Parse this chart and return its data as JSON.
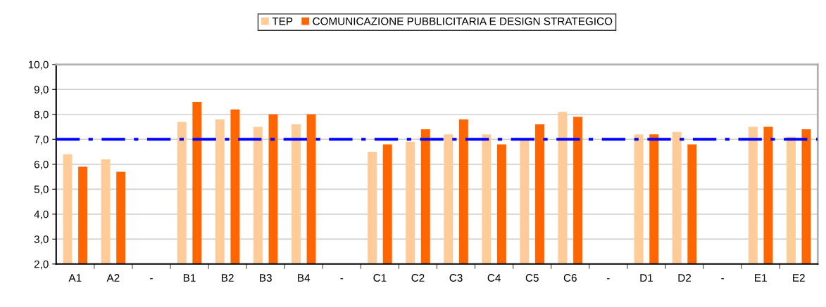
{
  "chart_data": {
    "type": "bar",
    "categories": [
      "A1",
      "A2",
      "-",
      "B1",
      "B2",
      "B3",
      "B4",
      "-",
      "C1",
      "C2",
      "C3",
      "C4",
      "C5",
      "C6",
      "-",
      "D1",
      "D2",
      "-",
      "E1",
      "E2"
    ],
    "series": [
      {
        "name": "TEP",
        "color": "#ffcc99",
        "values": [
          6.4,
          6.2,
          null,
          7.7,
          7.8,
          7.5,
          7.6,
          null,
          6.5,
          6.9,
          7.2,
          7.2,
          7.0,
          8.1,
          null,
          7.2,
          7.3,
          null,
          7.5,
          7.1
        ]
      },
      {
        "name": "COMUNICAZIONE PUBBLICITARIA E DESIGN STRATEGICO",
        "color": "#ff6600",
        "values": [
          5.9,
          5.7,
          null,
          8.5,
          8.2,
          8.0,
          8.0,
          null,
          6.8,
          7.4,
          7.8,
          6.8,
          7.6,
          7.9,
          null,
          7.2,
          6.8,
          null,
          7.5,
          7.4
        ]
      }
    ],
    "ylim": [
      2,
      10
    ],
    "yticks": [
      {
        "value": 2,
        "label": "2,0"
      },
      {
        "value": 3,
        "label": "3,0"
      },
      {
        "value": 4,
        "label": "4,0"
      },
      {
        "value": 5,
        "label": "5,0"
      },
      {
        "value": 6,
        "label": "6,0"
      },
      {
        "value": 7,
        "label": "7,0"
      },
      {
        "value": 8,
        "label": "8,0"
      },
      {
        "value": 9,
        "label": "9,0"
      },
      {
        "value": 10,
        "label": "10,0"
      }
    ],
    "ref_lines": [
      {
        "axis": "y",
        "value": 7,
        "color": "#0000ff",
        "line_style": "dashdot"
      }
    ],
    "grid": "y",
    "legend": "top"
  }
}
